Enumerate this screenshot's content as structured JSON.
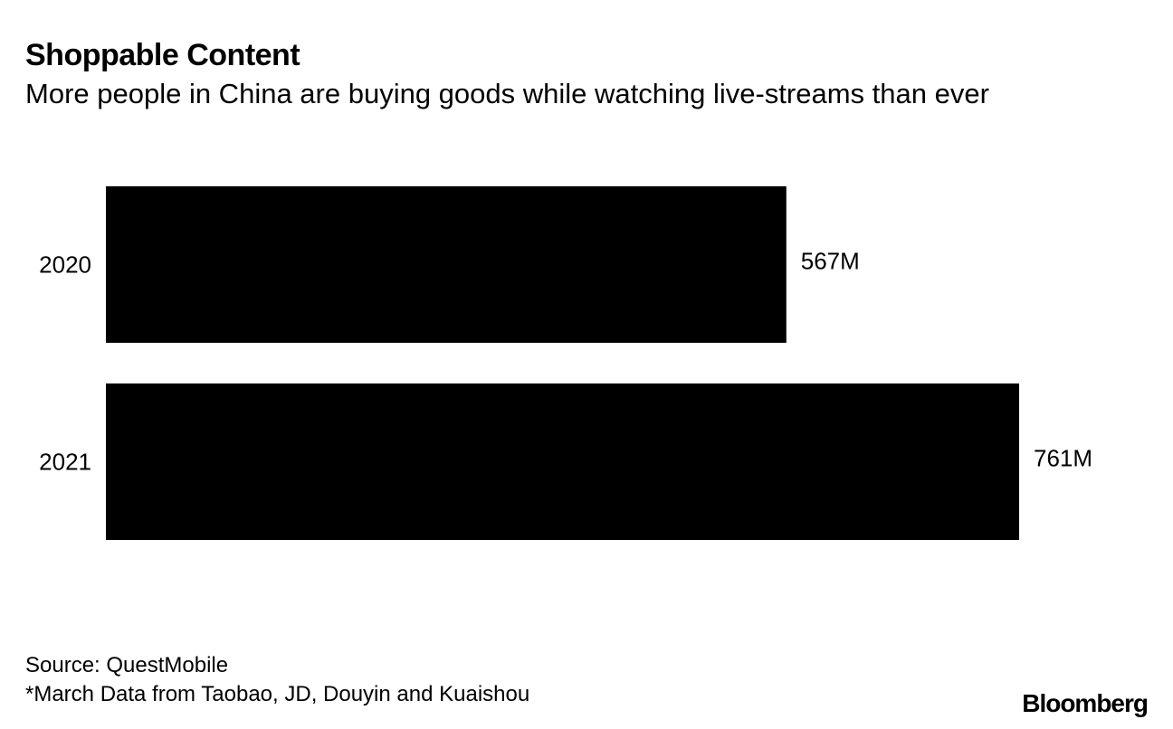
{
  "header": {
    "title": "Shoppable Content",
    "subtitle": "More people in China are buying goods while watching live-streams than ever"
  },
  "chart_data": {
    "type": "bar",
    "orientation": "horizontal",
    "categories": [
      "2020",
      "2021"
    ],
    "values": [
      567,
      761
    ],
    "value_labels": [
      "567M",
      "761M"
    ],
    "unit": "M",
    "xlim": [
      0,
      761
    ],
    "grid": false,
    "legend": "none",
    "bar_color": "#000000"
  },
  "footer": {
    "source": "Source: QuestMobile",
    "note": "*March Data from Taobao, JD, Douyin and Kuaishou",
    "brand": "Bloomberg"
  }
}
